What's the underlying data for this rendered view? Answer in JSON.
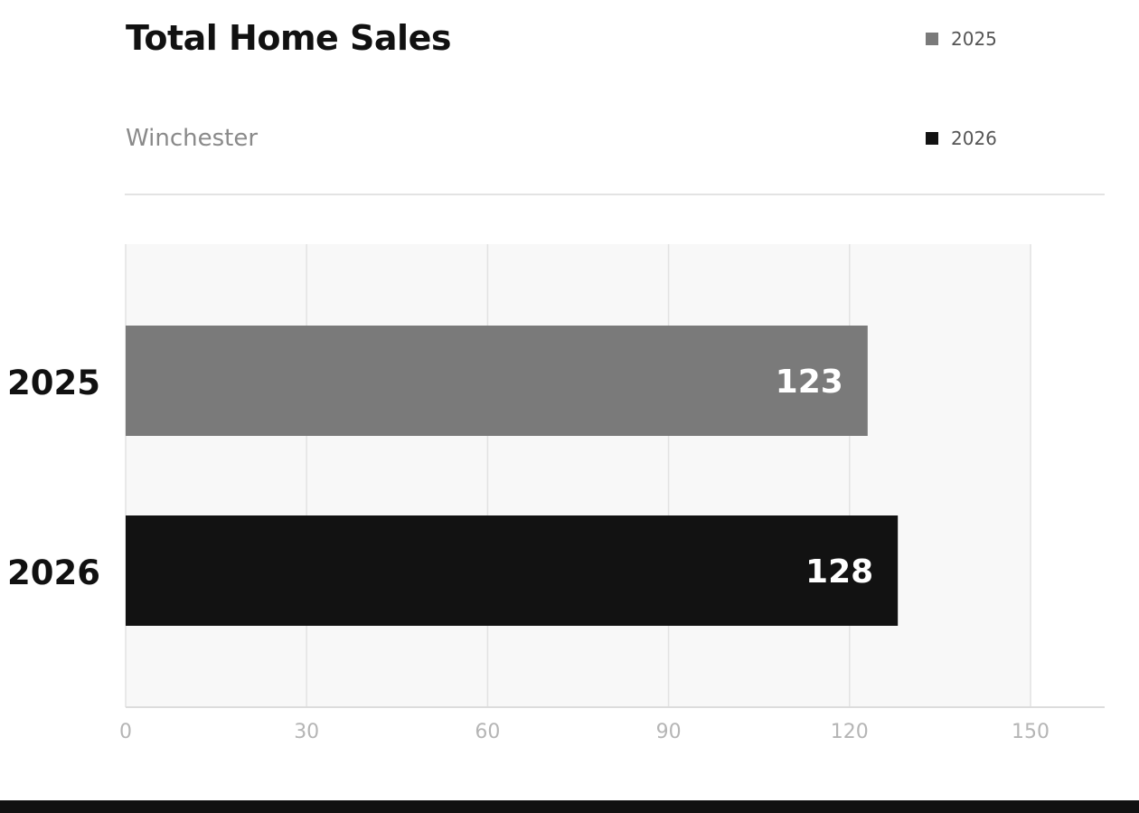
{
  "chart_data": {
    "type": "bar",
    "orientation": "horizontal",
    "title": "Total Home Sales",
    "subtitle": "Winchester",
    "categories": [
      "2025",
      "2026"
    ],
    "values": [
      123,
      128
    ],
    "data_labels": [
      "123",
      "128"
    ],
    "bar_colors": [
      "#7a7a7a",
      "#121212"
    ],
    "legend": [
      {
        "label": "2025",
        "color": "#7a7a7a"
      },
      {
        "label": "2026",
        "color": "#121212"
      }
    ],
    "legend_position": "top-right",
    "xlim": [
      0,
      150
    ],
    "x_ticks": [
      "0",
      "30",
      "60",
      "90",
      "120",
      "150"
    ],
    "grid": true,
    "xlabel": "",
    "ylabel": ""
  }
}
